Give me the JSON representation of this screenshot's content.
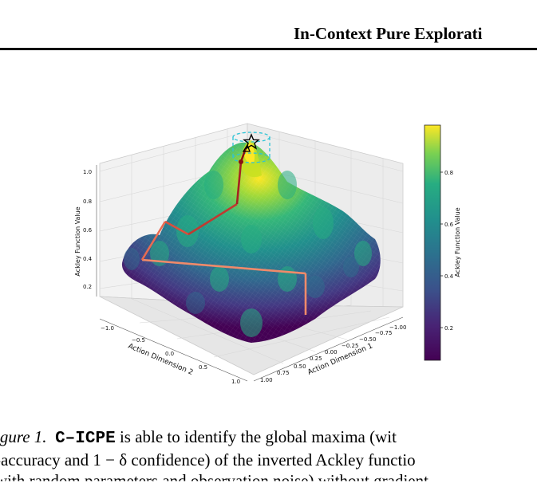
{
  "header": {
    "title": "In-Context Pure Explorati"
  },
  "figure": {
    "chart_data": {
      "type": "surface",
      "title": "",
      "xlabel": "Action Dimension 2",
      "ylabel": "Action Dimension 1",
      "zlabel": "Ackley Function Value",
      "colorbar_label": "Ackley Function Value",
      "colormap": "viridis",
      "x_ticks": [
        "−1.0",
        "−0.5",
        "0.0",
        "0.5",
        "1.0"
      ],
      "y_ticks": [
        "−1.00",
        "−0.75",
        "−0.50",
        "−0.25",
        "0.00",
        "0.25",
        "0.50",
        "0.75",
        "1.00"
      ],
      "z_ticks": [
        "0.2",
        "0.4",
        "0.6",
        "0.8",
        "1.0"
      ],
      "colorbar_ticks": [
        "0.2",
        "0.4",
        "0.6",
        "0.8"
      ],
      "zlim": [
        0.0,
        1.0
      ],
      "colorbar_range": [
        0.1,
        0.95
      ],
      "global_maximum": {
        "x2": 0.0,
        "x1": 0.0,
        "value": 1.0,
        "marker": "star"
      },
      "exploration_path_colors": [
        "#f08a6a",
        "#e0644a",
        "#b03028",
        "#8b1010"
      ],
      "colors": {
        "viridis_low": "#440154",
        "viridis_mid": "#21908d",
        "viridis_high": "#fde725",
        "target_ring": "#2ec4d6"
      }
    }
  },
  "caption": {
    "label": "igure 1.",
    "method": "C–ICPE",
    "line1_rest": " is able to identify the global maxima (wit",
    "line2": "-accuracy and 1 − δ confidence) of the inverted Ackley functio",
    "line3_cut": "with random parameters and observation noise) without gradient"
  }
}
